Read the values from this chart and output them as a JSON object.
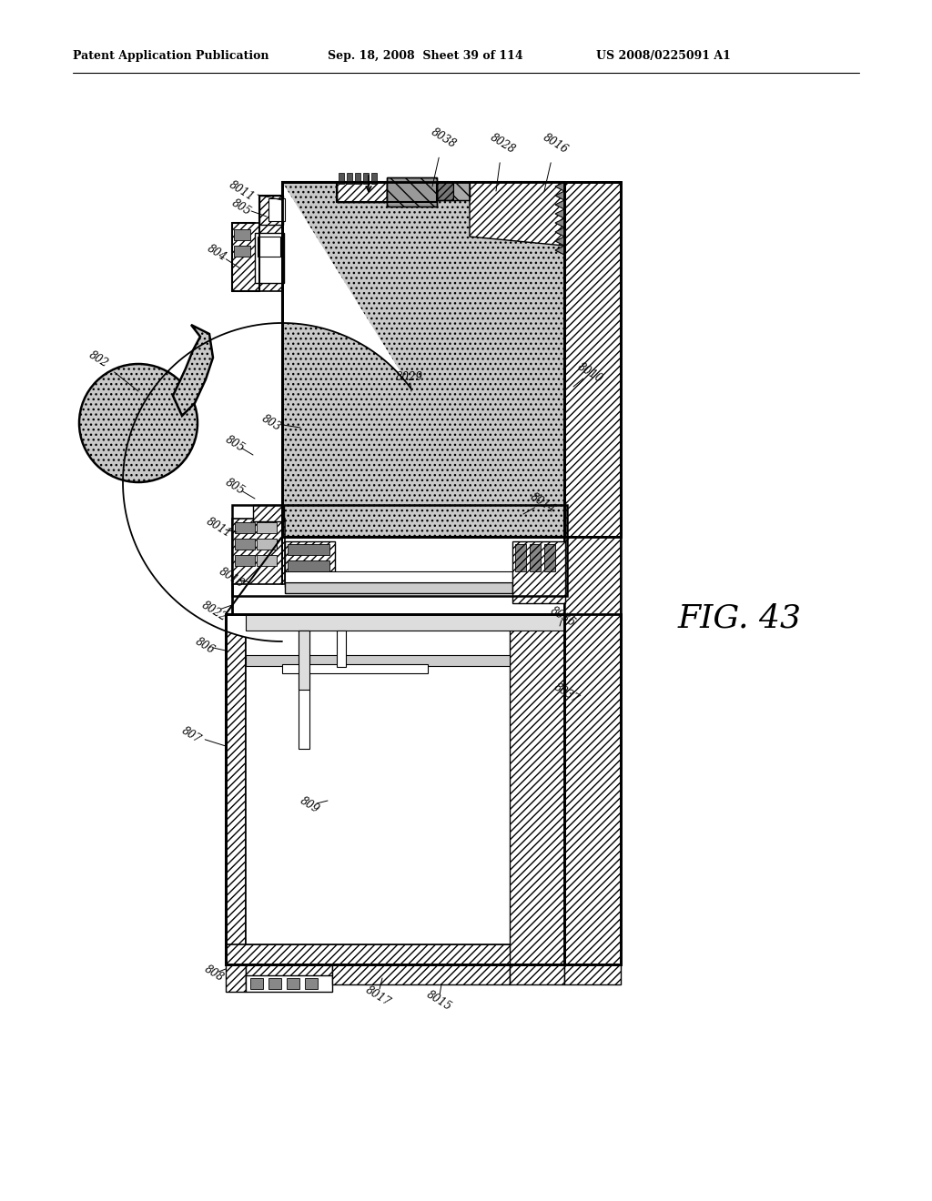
{
  "header_left": "Patent Application Publication",
  "header_mid": "Sep. 18, 2008  Sheet 39 of 114",
  "header_right": "US 2008/0225091 A1",
  "fig_label": "FIG. 43",
  "bg": "#ffffff"
}
